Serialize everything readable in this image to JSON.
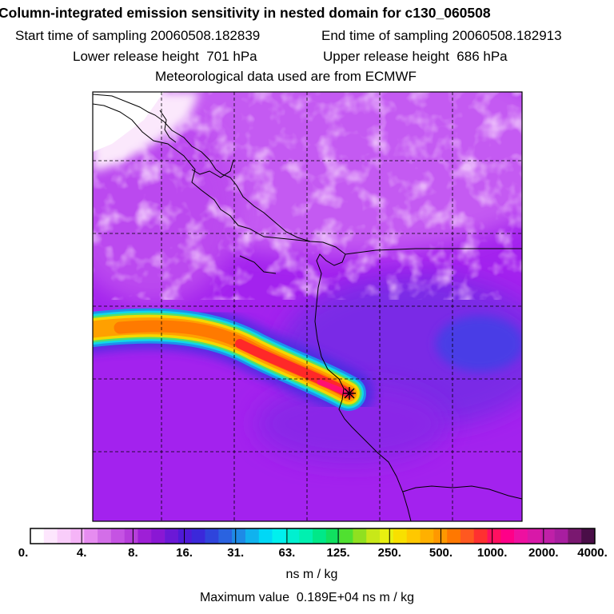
{
  "title": {
    "main": "Column-integrated emission sensitivity in nested domain for c130_060508",
    "start_label": "Start time of sampling",
    "start_value": "20060508.182839",
    "end_label": "End time of sampling",
    "end_value": "20060508.182913",
    "lower_label": "Lower release height",
    "lower_value": "701 hPa",
    "upper_label": "Upper release height",
    "upper_value": "686 hPa",
    "met_line": "Meteorological data used are from ECMWF"
  },
  "colorbar": {
    "colors": [
      "#ffffff",
      "#fde6fd",
      "#f9cdfa",
      "#f5b4f7",
      "#e68cf0",
      "#d36ee8",
      "#c553e3",
      "#b63ddb",
      "#9e1fd6",
      "#8a17d4",
      "#6b18d6",
      "#4f1ad8",
      "#3b28da",
      "#2f44dc",
      "#2a63e0",
      "#1e8ae6",
      "#10b2ee",
      "#00d8f6",
      "#00f0ee",
      "#00f0d0",
      "#00f0b0",
      "#00e888",
      "#10e060",
      "#50e030",
      "#90e020",
      "#c8e818",
      "#e8f010",
      "#f8e000",
      "#ffc800",
      "#ffb000",
      "#ff9800",
      "#ff7800",
      "#ff5820",
      "#ff3030",
      "#ff1060",
      "#ff0088",
      "#ee10a0",
      "#d818a8",
      "#c020a8",
      "#a81ea0",
      "#7a1870",
      "#4a0e48"
    ],
    "labels": [
      "0.",
      "4.",
      "8.",
      "16.",
      "31.",
      "63.",
      "125.",
      "250.",
      "500.",
      "1000.",
      "2000.",
      "4000."
    ],
    "units": "ns m / kg"
  },
  "max_value_label": "Maximum value",
  "max_value": "0.189E+04 ns m / kg",
  "map": {
    "release_marker_icon": "asterisk-icon",
    "plume_colors": [
      "#ff20a0",
      "#ff3030",
      "#ff8000",
      "#ffd000",
      "#30e0a0",
      "#00d0ff",
      "#2050e0"
    ],
    "background_colors": [
      "#a020f0",
      "#c050f0",
      "#e090f5",
      "#6030e0"
    ]
  }
}
